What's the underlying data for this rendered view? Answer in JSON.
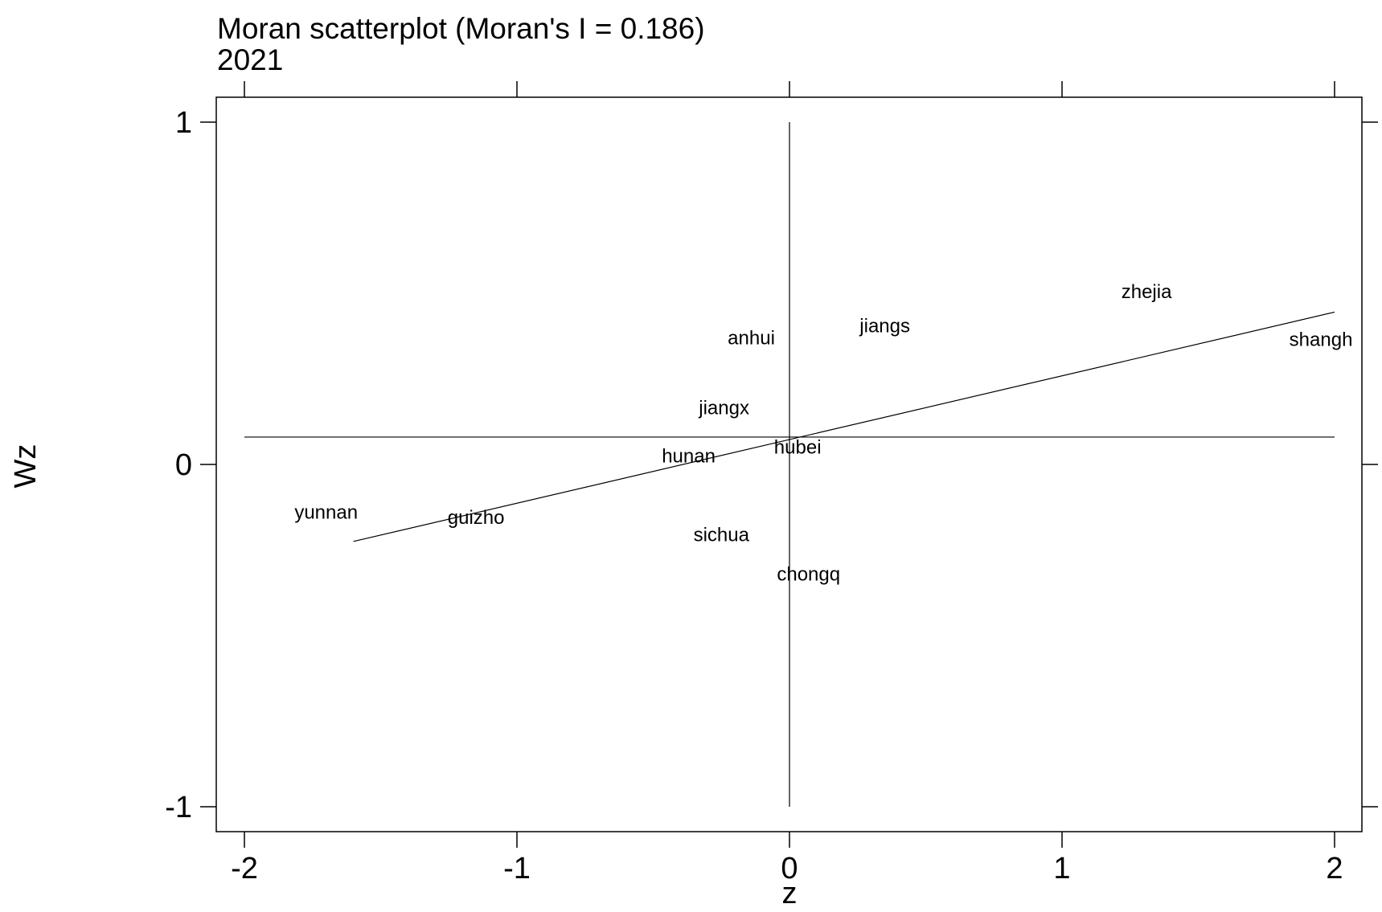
{
  "chart_data": {
    "type": "scatter",
    "title": "Moran scatterplot (Moran's I = 0.186)",
    "subtitle": "2021",
    "xlabel": "z",
    "ylabel": "Wz",
    "xlim": [
      -2.1,
      2.1
    ],
    "ylim": [
      -1.08,
      1.08
    ],
    "xticks": [
      -2,
      -1,
      0,
      1,
      2
    ],
    "yticks": [
      -1,
      0,
      1
    ],
    "grid": false,
    "points": [
      {
        "label": "yunnan",
        "x": -1.7,
        "y": -0.14
      },
      {
        "label": "guizho",
        "x": -1.15,
        "y": -0.155
      },
      {
        "label": "hunan",
        "x": -0.37,
        "y": 0.025
      },
      {
        "label": "sichua",
        "x": -0.25,
        "y": -0.205
      },
      {
        "label": "jiangx",
        "x": -0.24,
        "y": 0.165
      },
      {
        "label": "anhui",
        "x": -0.14,
        "y": 0.37
      },
      {
        "label": "hubei",
        "x": 0.03,
        "y": 0.05
      },
      {
        "label": "chongq",
        "x": 0.07,
        "y": -0.32
      },
      {
        "label": "jiangs",
        "x": 0.35,
        "y": 0.405
      },
      {
        "label": "zhejia",
        "x": 1.31,
        "y": 0.505
      },
      {
        "label": "shangh",
        "x": 1.95,
        "y": 0.365
      }
    ],
    "reference_lines": {
      "vertical_x": 0,
      "horizontal_y": 0.08,
      "fit_line": {
        "x": [
          -1.6,
          2.0
        ],
        "y": [
          -0.225,
          0.445
        ]
      }
    }
  }
}
